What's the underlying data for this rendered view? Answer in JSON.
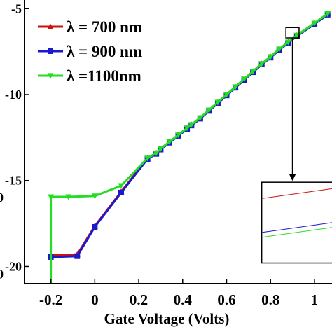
{
  "chart_data": {
    "type": "line",
    "xlabel": "Gate Voltage (Volts)",
    "ylabel": "",
    "xlim": [
      -0.32,
      1.08
    ],
    "ylim": [
      -21.0,
      -4.5
    ],
    "x_ticks": [
      {
        "value": -0.2,
        "label": "-0.2"
      },
      {
        "value": 0,
        "label": "0"
      },
      {
        "value": 0.2,
        "label": "0.2"
      },
      {
        "value": 0.4,
        "label": "0.4"
      },
      {
        "value": 0.6,
        "label": "0.6"
      },
      {
        "value": 0.8,
        "label": "0.8"
      },
      {
        "value": 1.0,
        "label": "1"
      }
    ],
    "y_ticks": [
      {
        "value": -5,
        "label": "-5"
      },
      {
        "value": -10,
        "label": "-10"
      },
      {
        "value": -15,
        "label": "-15"
      },
      {
        "value": -20,
        "label": "-20"
      }
    ],
    "left_edge_fragments": [
      {
        "y": -15.95,
        "label": "0"
      },
      {
        "y": -20.4,
        "label": "0"
      }
    ],
    "legend": {
      "placement": "top-left"
    },
    "series": [
      {
        "name": "λ = 700 nm",
        "color": "#cc1111",
        "marker": "triangle-up",
        "x": [
          -0.2,
          -0.08,
          0.0,
          0.12,
          0.24,
          0.28,
          0.3,
          0.34,
          0.38,
          0.42,
          0.44,
          0.48,
          0.52,
          0.56,
          0.6,
          0.64,
          0.68,
          0.72,
          0.76,
          0.8,
          0.84,
          0.88,
          0.92,
          1.0,
          1.06
        ],
        "y": [
          -19.35,
          -19.3,
          -17.65,
          -15.65,
          -13.7,
          -13.4,
          -13.15,
          -12.75,
          -12.35,
          -11.95,
          -11.75,
          -11.35,
          -10.9,
          -10.45,
          -10.0,
          -9.55,
          -9.1,
          -8.65,
          -8.2,
          -7.8,
          -7.35,
          -6.95,
          -6.55,
          -5.85,
          -5.3
        ]
      },
      {
        "name": "λ = 900 nm",
        "color": "#1a1acc",
        "marker": "square",
        "x": [
          -0.2,
          -0.08,
          0.0,
          0.12,
          0.24,
          0.28,
          0.3,
          0.34,
          0.38,
          0.42,
          0.44,
          0.48,
          0.52,
          0.56,
          0.6,
          0.64,
          0.68,
          0.72,
          0.76,
          0.8,
          0.84,
          0.88,
          0.92,
          1.0,
          1.06
        ],
        "y": [
          -19.45,
          -19.4,
          -17.7,
          -15.7,
          -13.75,
          -13.45,
          -13.2,
          -12.8,
          -12.4,
          -12.0,
          -11.8,
          -11.4,
          -10.95,
          -10.5,
          -10.05,
          -9.6,
          -9.15,
          -8.7,
          -8.25,
          -7.85,
          -7.4,
          -7.0,
          -6.6,
          -5.9,
          -5.35
        ]
      },
      {
        "name": "λ =1100nm",
        "color": "#22dd22",
        "marker": "triangle-down",
        "x": [
          -0.2,
          -0.2,
          -0.12,
          0.0,
          0.12,
          0.24,
          0.28,
          0.3,
          0.34,
          0.38,
          0.42,
          0.44,
          0.48,
          0.52,
          0.56,
          0.6,
          0.64,
          0.68,
          0.72,
          0.76,
          0.8,
          0.84,
          0.88,
          0.92,
          1.0,
          1.06
        ],
        "y": [
          -21.0,
          -15.95,
          -15.95,
          -15.9,
          -15.3,
          -13.7,
          -13.4,
          -13.15,
          -12.75,
          -12.35,
          -11.95,
          -11.75,
          -11.35,
          -10.9,
          -10.45,
          -10.0,
          -9.55,
          -9.1,
          -8.65,
          -8.2,
          -7.8,
          -7.35,
          -6.95,
          -6.55,
          -5.85,
          -5.3
        ]
      }
    ],
    "zoom_box": {
      "x": [
        0.87,
        0.93
      ],
      "y": [
        -6.7,
        -6.1
      ]
    },
    "inset": {
      "colors": [
        "#cc1111",
        "#1a1acc",
        "#22dd22"
      ]
    }
  }
}
